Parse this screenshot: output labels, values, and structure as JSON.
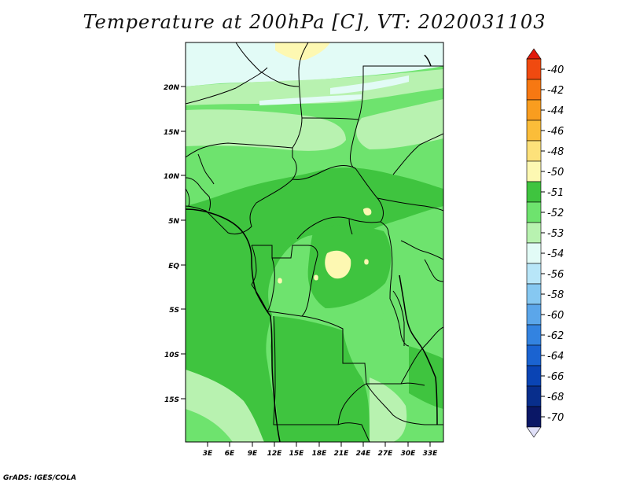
{
  "title": "Temperature at 200hPa [C], VT: 2020031103",
  "credit": "GrADS: IGES/COLA",
  "map": {
    "lat_ticks": [
      "20N",
      "15N",
      "10N",
      "5N",
      "EQ",
      "5S",
      "10S",
      "15S"
    ],
    "lon_ticks": [
      "3E",
      "6E",
      "9E",
      "12E",
      "15E",
      "18E",
      "21E",
      "24E",
      "27E",
      "30E",
      "33E"
    ]
  },
  "colorbar": {
    "labels": [
      "-40",
      "-42",
      "-44",
      "-46",
      "-48",
      "-50",
      "-51",
      "-52",
      "-53",
      "-54",
      "-56",
      "-58",
      "-60",
      "-62",
      "-64",
      "-66",
      "-68",
      "-70"
    ],
    "colors": [
      "#e11a0c",
      "#f04a10",
      "#f77812",
      "#f99d1f",
      "#fbbd39",
      "#fde17a",
      "#fdf8b2",
      "#3fc43f",
      "#6ee36e",
      "#b8f2b0",
      "#e2fbf6",
      "#b8e6f8",
      "#86c8f1",
      "#5ba6ea",
      "#3383e0",
      "#1a63d1",
      "#0a44b4",
      "#082e8c",
      "#0a1766",
      "#e0e0f8"
    ]
  }
}
